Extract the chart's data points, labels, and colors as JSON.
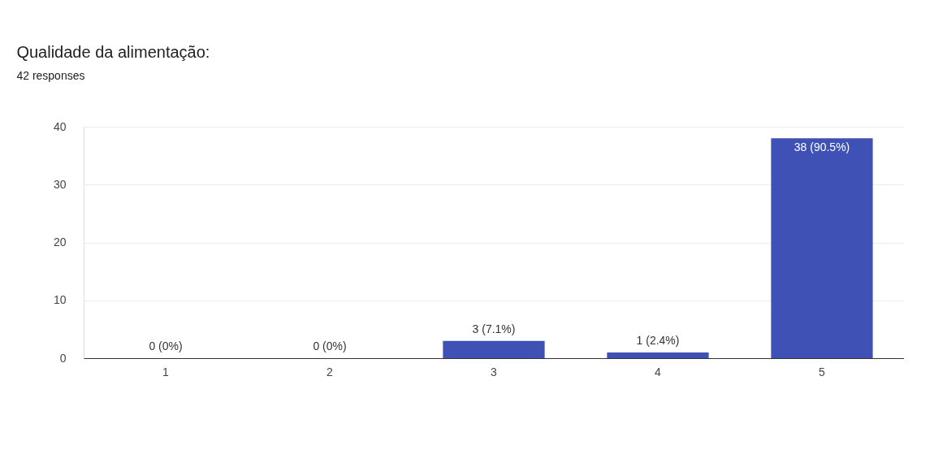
{
  "chart_data": {
    "type": "bar",
    "title": "Qualidade da alimentação:",
    "subtitle": "42 responses",
    "categories": [
      "1",
      "2",
      "3",
      "4",
      "5"
    ],
    "values": [
      0,
      0,
      3,
      1,
      38
    ],
    "value_labels": [
      "0 (0%)",
      "0 (0%)",
      "3 (7.1%)",
      "1 (2.4%)",
      "38 (90.5%)"
    ],
    "color": "#3f51b5",
    "ylim": [
      0,
      40
    ],
    "yticks": [
      0,
      10,
      20,
      30,
      40
    ],
    "grid": "y"
  }
}
